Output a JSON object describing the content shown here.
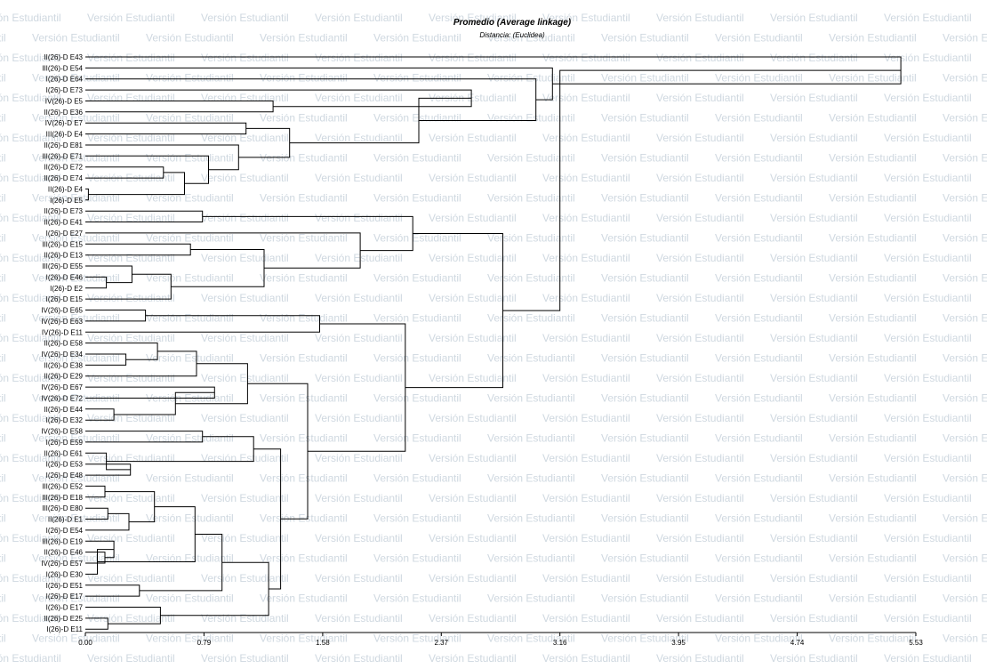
{
  "watermark_text": "Versión Estudiantil",
  "chart_data": {
    "type": "dendrogram",
    "title": "Promedio (Average linkage)",
    "subtitle": "Distancia: (Euclidea)",
    "xlim": [
      0,
      5.53
    ],
    "ticks": [
      "0.00",
      "0.79",
      "1.58",
      "2.37",
      "3.16",
      "3.95",
      "4.74",
      "5.53"
    ],
    "tick_values": [
      0,
      0.79,
      1.58,
      2.37,
      3.16,
      3.95,
      4.74,
      5.53
    ],
    "leaves": [
      "II(26)-D E43",
      "III(26)-D E54",
      "I(26)-D E64",
      "I(26)-D E73",
      "IV(26)-D E5",
      "II(26)-D E36",
      "IV(26)-D E7",
      "III(26)-D E4",
      "II(26)-D E81",
      "III(26)-D E71",
      "II(26)-D E72",
      "II(26)-D E74",
      "II(26)-D E4",
      "I(26)-D E5",
      "II(26)-D E73",
      "II(26)-D E41",
      "I(26)-D E27",
      "III(26)-D E15",
      "II(26)-D E13",
      "III(26)-D E55",
      "I(26)-D E46",
      "I(26)-D E2",
      "I(26)-D E15",
      "IV(26)-D E65",
      "IV(26)-D E63",
      "IV(26)-D E11",
      "II(26)-D E58",
      "IV(26)-D E34",
      "II(26)-D E38",
      "II(26)-D E29",
      "IV(26)-D E67",
      "IV(26)-D E72",
      "II(26)-D E44",
      "I(26)-D E32",
      "IV(26)-D E58",
      "I(26)-D E59",
      "II(26)-D E61",
      "I(26)-D E53",
      "I(26)-D E48",
      "III(26)-D E52",
      "III(26)-D E18",
      "III(26)-D E80",
      "II(26)-D E1",
      "I(26)-D E54",
      "III(26)-D E19",
      "II(26)-D E46",
      "IV(26)-D E57",
      "I(26)-D E30",
      "I(26)-D E51",
      "I(26)-D E17",
      "I(26)-D E17",
      "II(26)-D E25",
      "I(26)-D E11"
    ],
    "merges": [
      {
        "a": "L12",
        "b": "L13",
        "height": 0.02
      },
      {
        "a": "L10",
        "b": "L11",
        "height": 0.52
      },
      {
        "a": "N1",
        "b": "N0",
        "height": 0.66
      },
      {
        "a": "L9",
        "b": "N2",
        "height": 0.82
      },
      {
        "a": "L8",
        "b": "N3",
        "height": 1.02
      },
      {
        "a": "L6",
        "b": "L7",
        "height": 1.07
      },
      {
        "a": "N5",
        "b": "N4",
        "height": 1.36
      },
      {
        "a": "L4",
        "b": "L5",
        "height": 1.25
      },
      {
        "a": "L3",
        "b": "N7",
        "height": 2.57
      },
      {
        "a": "N8",
        "b": "N6",
        "height": 2.22
      },
      {
        "a": "L2",
        "b": "N9",
        "height": 3.0
      },
      {
        "a": "L1",
        "b": "N10",
        "height": 3.11
      },
      {
        "a": "L0",
        "b": "N11",
        "height": 5.43
      },
      {
        "a": "L14",
        "b": "L15",
        "height": 0.78
      },
      {
        "a": "L17",
        "b": "L18",
        "height": 0.7
      },
      {
        "a": "L20",
        "b": "L21",
        "height": 0.14
      },
      {
        "a": "L19",
        "b": "N15",
        "height": 0.31
      },
      {
        "a": "N16",
        "b": "L22",
        "height": 0.57
      },
      {
        "a": "N14",
        "b": "N17",
        "height": 1.19
      },
      {
        "a": "L16",
        "b": "N18",
        "height": 1.83
      },
      {
        "a": "N13",
        "b": "N19",
        "height": 2.18
      },
      {
        "a": "L23",
        "b": "L24",
        "height": 0.4
      },
      {
        "a": "N21",
        "b": "L25",
        "height": 1.56
      },
      {
        "a": "L27",
        "b": "L28",
        "height": 0.27
      },
      {
        "a": "L26",
        "b": "N23",
        "height": 0.48
      },
      {
        "a": "N24",
        "b": "L29",
        "height": 0.74
      },
      {
        "a": "L30",
        "b": "L31",
        "height": 0.86
      },
      {
        "a": "L32",
        "b": "L33",
        "height": 0.19
      },
      {
        "a": "N26",
        "b": "N27",
        "height": 0.6
      },
      {
        "a": "N25",
        "b": "N28",
        "height": 1.08
      },
      {
        "a": "L34",
        "b": "L35",
        "height": 0.78
      },
      {
        "a": "L37",
        "b": "L38",
        "height": 0.3
      },
      {
        "a": "L36",
        "b": "N31",
        "height": 0.14
      },
      {
        "a": "N30",
        "b": "N32",
        "height": 1.12
      },
      {
        "a": "L39",
        "b": "L40",
        "height": 0.13
      },
      {
        "a": "L41",
        "b": "L42",
        "height": 0.15
      },
      {
        "a": "N35",
        "b": "L43",
        "height": 0.29
      },
      {
        "a": "N34",
        "b": "N36",
        "height": 0.46
      },
      {
        "a": "L45",
        "b": "L46",
        "height": 0.13
      },
      {
        "a": "L44",
        "b": "N38",
        "height": 0.19
      },
      {
        "a": "N39",
        "b": "L47",
        "height": 0.08
      },
      {
        "a": "N37",
        "b": "N40",
        "height": 0.73
      },
      {
        "a": "L48",
        "b": "L49",
        "height": 0.36
      },
      {
        "a": "N41",
        "b": "N42",
        "height": 0.91
      },
      {
        "a": "L51",
        "b": "L52",
        "height": 0.15
      },
      {
        "a": "L50",
        "b": "N44",
        "height": 0.5
      },
      {
        "a": "N43",
        "b": "N45",
        "height": 1.22
      },
      {
        "a": "N33",
        "b": "N46",
        "height": 1.3
      },
      {
        "a": "N29",
        "b": "N47",
        "height": 1.48
      },
      {
        "a": "N22",
        "b": "N48",
        "height": 2.13
      },
      {
        "a": "N20",
        "b": "N49",
        "height": 2.78
      },
      {
        "a": "N50",
        "b": "N12",
        "height": 3.16
      }
    ]
  }
}
